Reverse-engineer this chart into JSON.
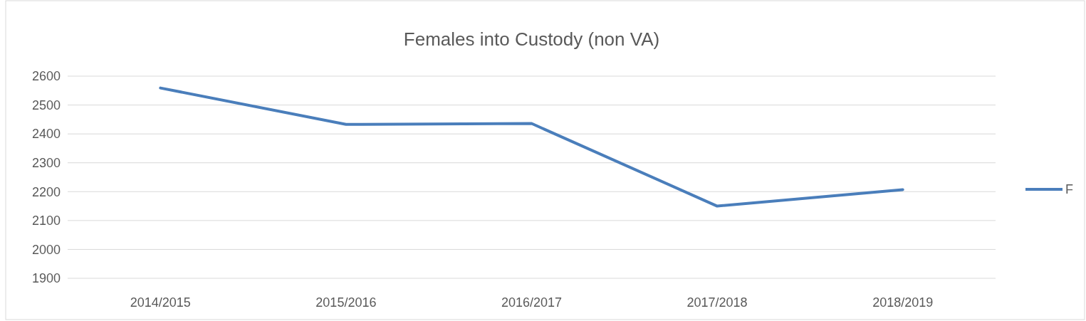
{
  "chart_data": {
    "type": "line",
    "title": "Females into Custody (non VA)",
    "categories": [
      "2014/2015",
      "2015/2016",
      "2016/2017",
      "2017/2018",
      "2018/2019"
    ],
    "series": [
      {
        "name": "F",
        "color": "#4a7ebb",
        "values": [
          2559,
          2433,
          2436,
          2150,
          2207
        ]
      }
    ],
    "ylim": [
      1900,
      2600
    ],
    "yticks": [
      1900,
      2000,
      2100,
      2200,
      2300,
      2400,
      2500,
      2600
    ],
    "grid": "y",
    "legend": "right",
    "marker": "none",
    "line_style": "solid"
  }
}
